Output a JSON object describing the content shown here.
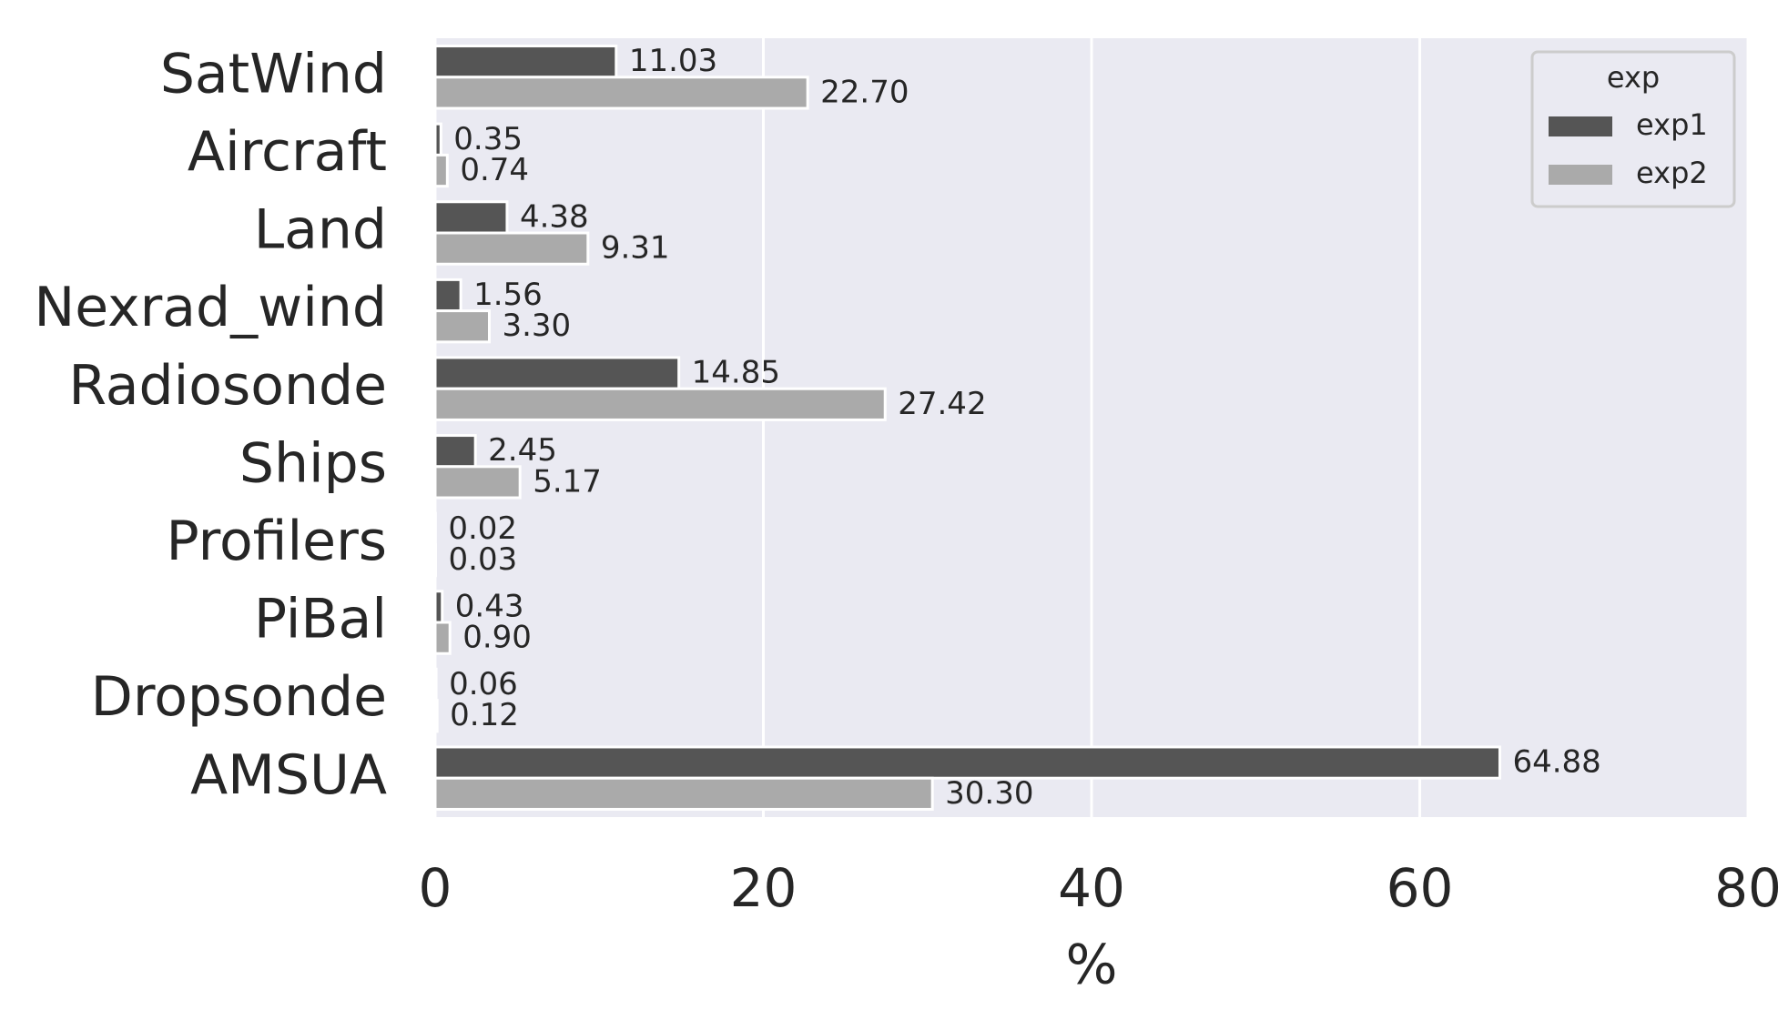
{
  "chart_data": {
    "type": "barh",
    "categories": [
      "SatWind",
      "Aircraft",
      "Land",
      "Nexrad_wind",
      "Radiosonde",
      "Ships",
      "Profilers",
      "PiBal",
      "Dropsonde",
      "AMSUA"
    ],
    "series": [
      {
        "name": "exp1",
        "color": "#555555",
        "values": [
          11.03,
          0.35,
          4.38,
          1.56,
          14.85,
          2.45,
          0.02,
          0.43,
          0.06,
          64.88
        ],
        "value_labels": [
          "11.03",
          "0.35",
          "4.38",
          "1.56",
          "14.85",
          "2.45",
          "0.02",
          "0.43",
          "0.06",
          "64.88"
        ]
      },
      {
        "name": "exp2",
        "color": "#aaaaaa",
        "values": [
          22.7,
          0.74,
          9.31,
          3.3,
          27.42,
          5.17,
          0.03,
          0.9,
          0.12,
          30.3
        ],
        "value_labels": [
          "22.70",
          "0.74",
          "9.31",
          "3.30",
          "27.42",
          "5.17",
          "0.03",
          "0.90",
          "0.12",
          "30.30"
        ]
      }
    ],
    "xlabel": "%",
    "xlim": [
      0,
      80
    ],
    "xticks": [
      0,
      20,
      40,
      60,
      80
    ],
    "grid": true,
    "legend": "upper right",
    "legend_title": "exp"
  }
}
